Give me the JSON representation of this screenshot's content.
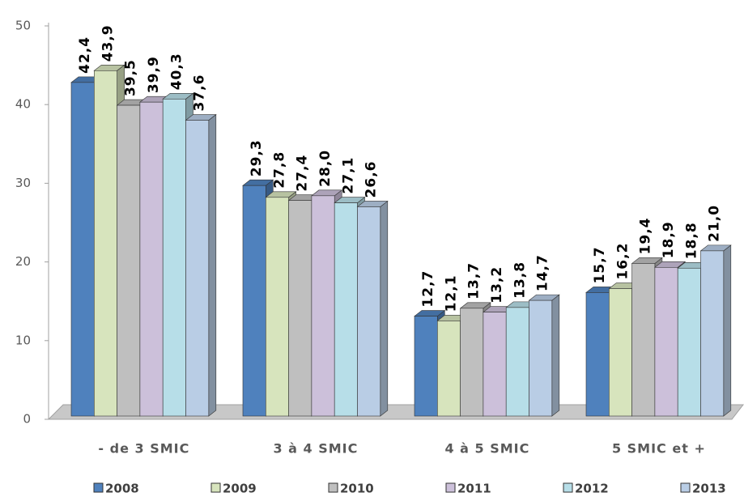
{
  "chart_data": {
    "type": "bar3d",
    "categories": [
      "- de 3 SMIC",
      "3 à 4 SMIC",
      "4 à 5 SMIC",
      "5 SMIC et +"
    ],
    "series": [
      {
        "name": "2008",
        "color": "#4f81bd",
        "values": [
          42.4,
          29.3,
          12.7,
          15.7
        ],
        "value_labels": [
          "42,4",
          "29,3",
          "12,7",
          "15,7"
        ]
      },
      {
        "name": "2009",
        "color": "#d7e4bd",
        "values": [
          43.9,
          27.8,
          12.1,
          16.2
        ],
        "value_labels": [
          "43,9",
          "27,8",
          "12,1",
          "16,2"
        ]
      },
      {
        "name": "2010",
        "color": "#bfbfbf",
        "values": [
          39.5,
          27.4,
          13.7,
          19.4
        ],
        "value_labels": [
          "39,5",
          "27,4",
          "13,7",
          "19,4"
        ]
      },
      {
        "name": "2011",
        "color": "#ccc0da",
        "values": [
          39.9,
          28.0,
          13.2,
          18.9
        ],
        "value_labels": [
          "39,9",
          "28,0",
          "13,2",
          "18,9"
        ]
      },
      {
        "name": "2012",
        "color": "#b7dee8",
        "values": [
          40.3,
          27.1,
          13.8,
          18.8
        ],
        "value_labels": [
          "40,3",
          "27,1",
          "13,8",
          "18,8"
        ]
      },
      {
        "name": "2013",
        "color": "#b9cde5",
        "values": [
          37.6,
          26.6,
          14.7,
          21.0
        ],
        "value_labels": [
          "37,6",
          "26,6",
          "14,7",
          "21,0"
        ]
      }
    ],
    "ylim": [
      0,
      50
    ],
    "yticks": [
      0,
      10,
      20,
      30,
      40,
      50
    ],
    "legend": "bottom"
  }
}
